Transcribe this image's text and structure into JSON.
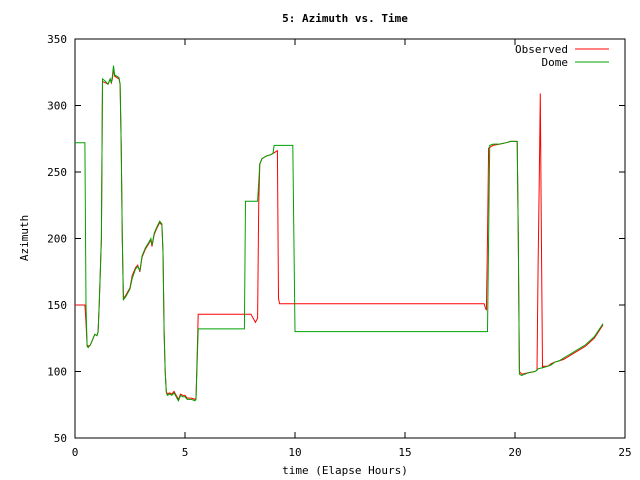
{
  "chart_data": {
    "type": "line",
    "title": "5: Azimuth vs. Time",
    "xlabel": "time (Elapse Hours)",
    "ylabel": "Azimuth",
    "xlim": [
      0,
      25
    ],
    "ylim": [
      50,
      350
    ],
    "xticks": [
      0,
      5,
      10,
      15,
      20,
      25
    ],
    "yticks": [
      50,
      100,
      150,
      200,
      250,
      300,
      350
    ],
    "legend_position": "top-right",
    "grid": false,
    "series": [
      {
        "name": "Observed",
        "color": "#ff0000",
        "points": [
          [
            0.0,
            150
          ],
          [
            0.45,
            150
          ],
          [
            0.5,
            137
          ],
          [
            0.55,
            120
          ],
          [
            0.6,
            119
          ],
          [
            0.7,
            120
          ],
          [
            0.8,
            124
          ],
          [
            0.9,
            128
          ],
          [
            1.0,
            127
          ],
          [
            1.05,
            130
          ],
          [
            1.1,
            150
          ],
          [
            1.2,
            200
          ],
          [
            1.25,
            318
          ],
          [
            1.4,
            317
          ],
          [
            1.5,
            316
          ],
          [
            1.6,
            320
          ],
          [
            1.65,
            317
          ],
          [
            1.7,
            320
          ],
          [
            1.75,
            328
          ],
          [
            1.8,
            322
          ],
          [
            1.9,
            321
          ],
          [
            2.0,
            320
          ],
          [
            2.05,
            316
          ],
          [
            2.1,
            270
          ],
          [
            2.15,
            200
          ],
          [
            2.2,
            155
          ],
          [
            2.3,
            157
          ],
          [
            2.4,
            160
          ],
          [
            2.5,
            163
          ],
          [
            2.6,
            172
          ],
          [
            2.75,
            178
          ],
          [
            2.85,
            180
          ],
          [
            2.95,
            175
          ],
          [
            3.05,
            186
          ],
          [
            3.2,
            192
          ],
          [
            3.35,
            196
          ],
          [
            3.45,
            199
          ],
          [
            3.5,
            194
          ],
          [
            3.6,
            203
          ],
          [
            3.7,
            207
          ],
          [
            3.85,
            212
          ],
          [
            3.95,
            210
          ],
          [
            4.0,
            190
          ],
          [
            4.05,
            130
          ],
          [
            4.1,
            100
          ],
          [
            4.15,
            85
          ],
          [
            4.2,
            83
          ],
          [
            4.3,
            84
          ],
          [
            4.4,
            83
          ],
          [
            4.5,
            85
          ],
          [
            4.6,
            82
          ],
          [
            4.7,
            79
          ],
          [
            4.8,
            83
          ],
          [
            4.9,
            82
          ],
          [
            5.0,
            82
          ],
          [
            5.1,
            80
          ],
          [
            5.2,
            80
          ],
          [
            5.3,
            80
          ],
          [
            5.45,
            79
          ],
          [
            5.5,
            80
          ],
          [
            5.55,
            110
          ],
          [
            5.6,
            143
          ],
          [
            8.0,
            143
          ],
          [
            8.1,
            140
          ],
          [
            8.2,
            137
          ],
          [
            8.3,
            140
          ],
          [
            8.35,
            225
          ],
          [
            8.4,
            256
          ],
          [
            8.5,
            260
          ],
          [
            8.7,
            262
          ],
          [
            8.9,
            263
          ],
          [
            9.0,
            264
          ],
          [
            9.2,
            266
          ],
          [
            9.25,
            155
          ],
          [
            9.3,
            151
          ],
          [
            18.6,
            151
          ],
          [
            18.65,
            148
          ],
          [
            18.7,
            146
          ],
          [
            18.75,
            200
          ],
          [
            18.8,
            268
          ],
          [
            19.0,
            270
          ],
          [
            19.3,
            271
          ],
          [
            19.6,
            272
          ],
          [
            19.8,
            273
          ],
          [
            20.1,
            273
          ],
          [
            20.15,
            200
          ],
          [
            20.2,
            100
          ],
          [
            20.3,
            98
          ],
          [
            20.6,
            99
          ],
          [
            20.9,
            100
          ],
          [
            21.0,
            101
          ],
          [
            21.05,
            180
          ],
          [
            21.1,
            240
          ],
          [
            21.15,
            309
          ],
          [
            21.2,
            200
          ],
          [
            21.25,
            103
          ],
          [
            21.3,
            104
          ],
          [
            21.5,
            104
          ],
          [
            21.65,
            106
          ],
          [
            21.8,
            107
          ],
          [
            22.0,
            108
          ],
          [
            22.2,
            109
          ],
          [
            22.4,
            111
          ],
          [
            22.6,
            113
          ],
          [
            22.8,
            115
          ],
          [
            23.0,
            117
          ],
          [
            23.2,
            119
          ],
          [
            23.4,
            122
          ],
          [
            23.6,
            125
          ],
          [
            23.8,
            130
          ],
          [
            24.0,
            135
          ]
        ]
      },
      {
        "name": "Dome",
        "color": "#00a000",
        "points": [
          [
            0.0,
            272
          ],
          [
            0.45,
            272
          ],
          [
            0.5,
            150
          ],
          [
            0.55,
            119
          ],
          [
            0.6,
            118
          ],
          [
            0.7,
            120
          ],
          [
            0.8,
            124
          ],
          [
            0.9,
            128
          ],
          [
            1.0,
            127
          ],
          [
            1.05,
            130
          ],
          [
            1.1,
            150
          ],
          [
            1.2,
            200
          ],
          [
            1.25,
            320
          ],
          [
            1.4,
            318
          ],
          [
            1.5,
            316
          ],
          [
            1.6,
            320
          ],
          [
            1.65,
            317
          ],
          [
            1.7,
            322
          ],
          [
            1.75,
            330
          ],
          [
            1.8,
            323
          ],
          [
            1.9,
            322
          ],
          [
            2.0,
            321
          ],
          [
            2.05,
            316
          ],
          [
            2.1,
            270
          ],
          [
            2.15,
            200
          ],
          [
            2.2,
            154
          ],
          [
            2.3,
            156
          ],
          [
            2.4,
            159
          ],
          [
            2.5,
            162
          ],
          [
            2.6,
            170
          ],
          [
            2.75,
            177
          ],
          [
            2.85,
            179
          ],
          [
            2.95,
            176
          ],
          [
            3.05,
            187
          ],
          [
            3.2,
            193
          ],
          [
            3.35,
            197
          ],
          [
            3.45,
            200
          ],
          [
            3.5,
            195
          ],
          [
            3.6,
            204
          ],
          [
            3.7,
            208
          ],
          [
            3.85,
            213
          ],
          [
            3.95,
            211
          ],
          [
            4.0,
            190
          ],
          [
            4.05,
            130
          ],
          [
            4.1,
            100
          ],
          [
            4.15,
            84
          ],
          [
            4.2,
            82
          ],
          [
            4.3,
            83
          ],
          [
            4.4,
            82
          ],
          [
            4.5,
            84
          ],
          [
            4.6,
            81
          ],
          [
            4.7,
            78
          ],
          [
            4.8,
            82
          ],
          [
            4.9,
            81
          ],
          [
            5.0,
            81
          ],
          [
            5.1,
            79
          ],
          [
            5.2,
            79
          ],
          [
            5.3,
            79
          ],
          [
            5.45,
            78
          ],
          [
            5.5,
            79
          ],
          [
            5.55,
            105
          ],
          [
            5.6,
            132
          ],
          [
            7.7,
            132
          ],
          [
            7.75,
            228
          ],
          [
            8.3,
            228
          ],
          [
            8.4,
            256
          ],
          [
            8.5,
            260
          ],
          [
            8.7,
            262
          ],
          [
            8.9,
            263
          ],
          [
            9.0,
            264
          ],
          [
            9.05,
            270
          ],
          [
            9.9,
            270
          ],
          [
            9.95,
            200
          ],
          [
            10.0,
            130
          ],
          [
            18.75,
            130
          ],
          [
            18.8,
            200
          ],
          [
            18.85,
            270
          ],
          [
            19.0,
            271
          ],
          [
            19.3,
            271
          ],
          [
            19.6,
            272
          ],
          [
            19.8,
            273
          ],
          [
            20.1,
            273
          ],
          [
            20.15,
            200
          ],
          [
            20.2,
            98
          ],
          [
            20.3,
            97
          ],
          [
            20.6,
            99
          ],
          [
            20.9,
            100
          ],
          [
            21.0,
            101
          ],
          [
            21.05,
            102
          ],
          [
            21.3,
            103
          ],
          [
            21.5,
            104
          ],
          [
            21.65,
            105
          ],
          [
            21.8,
            107
          ],
          [
            22.0,
            108
          ],
          [
            22.2,
            110
          ],
          [
            22.4,
            112
          ],
          [
            22.6,
            114
          ],
          [
            22.8,
            116
          ],
          [
            23.0,
            118
          ],
          [
            23.2,
            120
          ],
          [
            23.4,
            123
          ],
          [
            23.6,
            126
          ],
          [
            23.8,
            131
          ],
          [
            24.0,
            136
          ]
        ]
      }
    ]
  }
}
